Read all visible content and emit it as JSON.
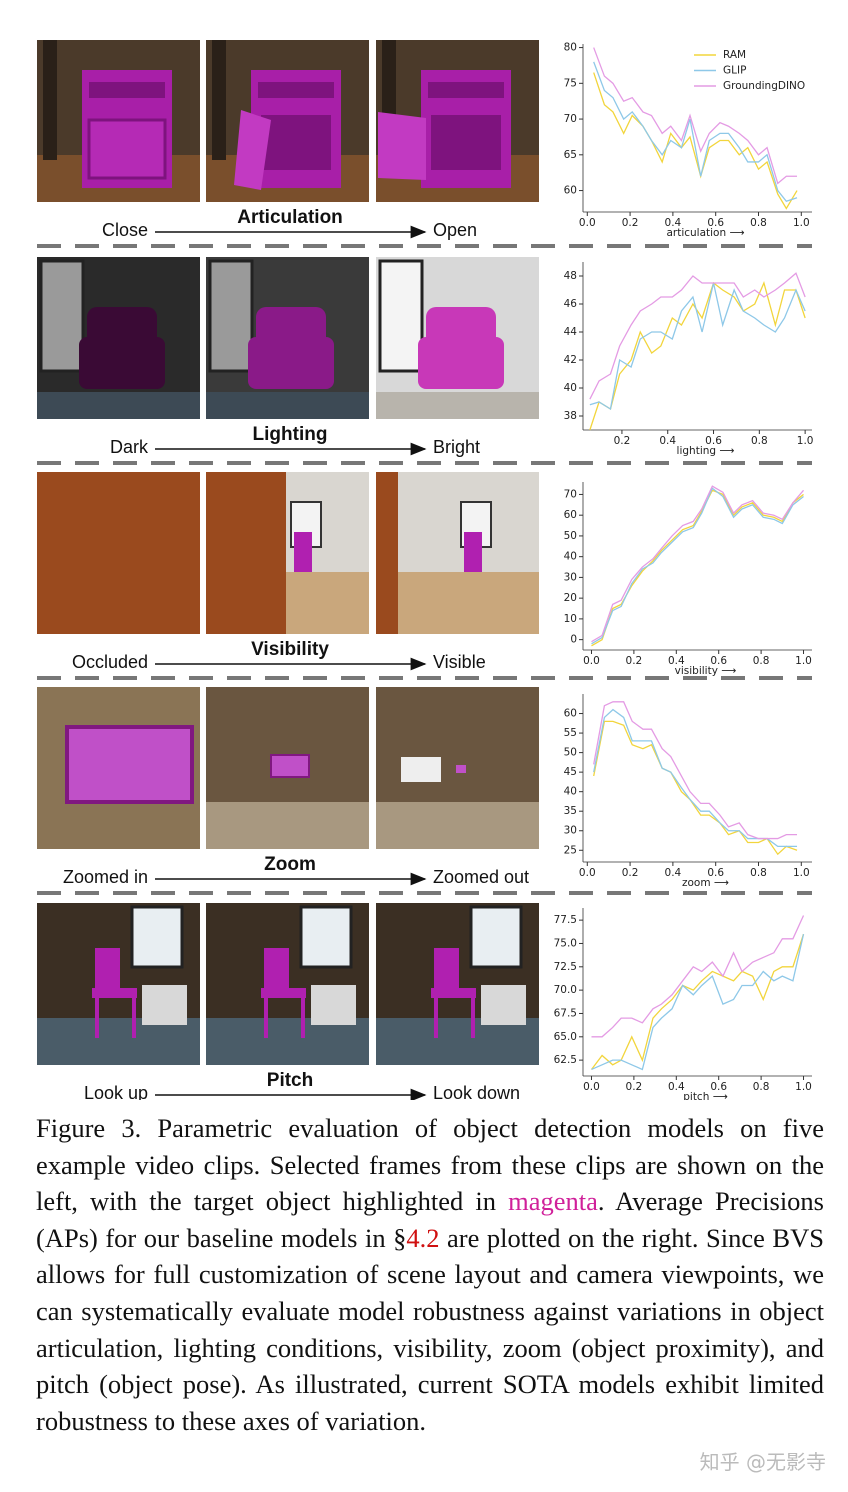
{
  "rows": [
    {
      "title": "Articulation",
      "left": "Close",
      "right": "Open"
    },
    {
      "title": "Lighting",
      "left": "Dark",
      "right": "Bright"
    },
    {
      "title": "Visibility",
      "left": "Occluded",
      "right": "Visible"
    },
    {
      "title": "Zoom",
      "left": "Zoomed in",
      "right": "Zoomed out"
    },
    {
      "title": "Pitch",
      "left": "Look up",
      "right": "Look down"
    }
  ],
  "chart_data": [
    {
      "type": "line",
      "xlabel": "articulation ⟶",
      "legend": "upper right",
      "x": [
        0.03,
        0.08,
        0.12,
        0.17,
        0.21,
        0.26,
        0.3,
        0.35,
        0.39,
        0.44,
        0.48,
        0.53,
        0.57,
        0.62,
        0.66,
        0.71,
        0.75,
        0.8,
        0.84,
        0.89,
        0.93,
        0.98
      ],
      "xlim": [
        -0.02,
        1.05
      ],
      "ylim": [
        57,
        80.5
      ],
      "xticks": [
        {
          "value": 0,
          "label": "0.0"
        },
        0.2,
        0.4,
        0.6,
        0.8,
        {
          "value": 1,
          "label": "1.0"
        }
      ],
      "yticks": [
        60,
        65,
        70,
        75,
        80
      ],
      "series": [
        {
          "name": "RAM",
          "color": "#f2d53c",
          "values": [
            76.5,
            72,
            71,
            68,
            70.5,
            69,
            67,
            64,
            68,
            66,
            67.5,
            62,
            66,
            67,
            67,
            65,
            66,
            63,
            64,
            59.5,
            57.5,
            60
          ]
        },
        {
          "name": "GLIP",
          "color": "#8ec8e8",
          "values": [
            78,
            74,
            73,
            70,
            71,
            69,
            67,
            65,
            67,
            66,
            70,
            62,
            67,
            68,
            68,
            66,
            64,
            64,
            65,
            60,
            58.5,
            59
          ]
        },
        {
          "name": "GroundingDINO",
          "color": "#e49be4",
          "values": [
            80,
            76,
            75,
            72.5,
            73,
            71,
            70.5,
            68,
            69,
            67,
            70.5,
            65.5,
            68,
            69.5,
            69,
            68,
            67,
            65,
            66,
            61,
            62,
            62
          ]
        }
      ]
    },
    {
      "type": "line",
      "xlabel": "lighting ⟶",
      "x": [
        0.06,
        0.1,
        0.15,
        0.19,
        0.24,
        0.28,
        0.33,
        0.37,
        0.42,
        0.46,
        0.51,
        0.55,
        0.6,
        0.64,
        0.69,
        0.73,
        0.78,
        0.82,
        0.87,
        0.91,
        0.96,
        1.0
      ],
      "xlim": [
        0.03,
        1.03
      ],
      "ylim": [
        37,
        49
      ],
      "xticks": [
        0.2,
        0.4,
        0.6,
        0.8,
        {
          "value": 1,
          "label": "1.0"
        }
      ],
      "yticks": [
        38,
        40,
        42,
        44,
        46,
        48
      ],
      "series": [
        {
          "color": "#f2d53c",
          "values": [
            37,
            39,
            38.5,
            41,
            42,
            44,
            42.5,
            43,
            45,
            44.5,
            46,
            45,
            47.5,
            47,
            46.5,
            45.5,
            46,
            47.5,
            44.5,
            47,
            47,
            45
          ]
        },
        {
          "color": "#8ec8e8",
          "values": [
            38.8,
            39,
            38.5,
            42,
            41.5,
            43.5,
            44,
            44,
            43.5,
            45.5,
            46.5,
            44,
            47.5,
            44.5,
            47,
            45.5,
            45,
            44.5,
            44,
            45,
            47,
            45.5
          ]
        },
        {
          "color": "#e49be4",
          "values": [
            39.2,
            40.5,
            41,
            43,
            44.5,
            45.5,
            46,
            46.5,
            46.5,
            47,
            48,
            47.5,
            47.5,
            47.5,
            47.5,
            46.5,
            47,
            46.5,
            47,
            47.5,
            48.2,
            46.5
          ]
        }
      ]
    },
    {
      "type": "line",
      "xlabel": "visibility ⟶",
      "x": [
        0,
        0.05,
        0.1,
        0.14,
        0.19,
        0.24,
        0.29,
        0.33,
        0.38,
        0.43,
        0.48,
        0.52,
        0.57,
        0.62,
        0.67,
        0.71,
        0.76,
        0.81,
        0.86,
        0.9,
        0.95,
        1.0
      ],
      "xlim": [
        -0.04,
        1.04
      ],
      "ylim": [
        -5,
        76
      ],
      "xticks": [
        {
          "value": 0,
          "label": "0.0"
        },
        0.2,
        0.4,
        0.6,
        0.8,
        {
          "value": 1,
          "label": "1.0"
        }
      ],
      "yticks": [
        0,
        10,
        20,
        30,
        40,
        50,
        60,
        70
      ],
      "series": [
        {
          "color": "#f2d53c",
          "values": [
            -3,
            0,
            15,
            17,
            26,
            33,
            38,
            43,
            48,
            53,
            55,
            62,
            72,
            70,
            60,
            64,
            66,
            60,
            59,
            57,
            66,
            70
          ]
        },
        {
          "color": "#8ec8e8",
          "values": [
            -2,
            1,
            14,
            16,
            27,
            34,
            37,
            42,
            47,
            52,
            54,
            61,
            73,
            69,
            59,
            63,
            65,
            59,
            58,
            56,
            65,
            69
          ]
        },
        {
          "color": "#e49be4",
          "values": [
            -1,
            2,
            17,
            19,
            29,
            35,
            39,
            44,
            50,
            55,
            57,
            63,
            74,
            71,
            61,
            65,
            67,
            61,
            60,
            58,
            66,
            72
          ]
        }
      ]
    },
    {
      "type": "line",
      "xlabel": "zoom ⟶",
      "x": [
        0.03,
        0.08,
        0.12,
        0.17,
        0.21,
        0.26,
        0.3,
        0.35,
        0.39,
        0.44,
        0.48,
        0.53,
        0.57,
        0.62,
        0.66,
        0.71,
        0.75,
        0.8,
        0.84,
        0.89,
        0.93,
        0.98
      ],
      "xlim": [
        -0.02,
        1.05
      ],
      "ylim": [
        22,
        65
      ],
      "xticks": [
        {
          "value": 0,
          "label": "0.0"
        },
        0.2,
        0.4,
        0.6,
        0.8,
        {
          "value": 1,
          "label": "1.0"
        }
      ],
      "yticks": [
        25,
        30,
        35,
        40,
        45,
        50,
        55,
        60
      ],
      "series": [
        {
          "color": "#f2d53c",
          "values": [
            44,
            58,
            58,
            57,
            52,
            51,
            52,
            46,
            45,
            40,
            38,
            34,
            34,
            32,
            29,
            30,
            27,
            27,
            28,
            24,
            26,
            25
          ]
        },
        {
          "color": "#8ec8e8",
          "values": [
            45,
            59,
            61,
            59,
            53,
            53,
            53,
            46,
            45,
            41,
            38,
            35,
            35,
            32,
            30,
            30,
            28,
            28,
            28,
            26,
            26,
            26
          ]
        },
        {
          "color": "#e49be4",
          "values": [
            47,
            62,
            63,
            63,
            58,
            56,
            56,
            51,
            49,
            44,
            40,
            37,
            37,
            34,
            31,
            32,
            29,
            28,
            28,
            28,
            29,
            29
          ]
        }
      ]
    },
    {
      "type": "line",
      "xlabel": "pitch ⟶",
      "x": [
        0,
        0.05,
        0.1,
        0.14,
        0.19,
        0.24,
        0.29,
        0.33,
        0.38,
        0.43,
        0.48,
        0.52,
        0.57,
        0.62,
        0.67,
        0.71,
        0.76,
        0.81,
        0.86,
        0.9,
        0.95,
        1.0
      ],
      "xlim": [
        -0.04,
        1.04
      ],
      "ylim": [
        60.8,
        78.8
      ],
      "xticks": [
        {
          "value": 0,
          "label": "0.0"
        },
        0.2,
        0.4,
        0.6,
        0.8,
        {
          "value": 1,
          "label": "1.0"
        }
      ],
      "yticks": [
        62.5,
        {
          "value": 65,
          "label": "65.0"
        },
        67.5,
        {
          "value": 70,
          "label": "70.0"
        },
        72.5,
        {
          "value": 75,
          "label": "75.0"
        },
        77.5
      ],
      "series": [
        {
          "color": "#f2d53c",
          "values": [
            61.5,
            63,
            62,
            62.5,
            65,
            62.5,
            67,
            68,
            69,
            70.5,
            70,
            71,
            72,
            71.5,
            71,
            72,
            71.5,
            69,
            72,
            72.5,
            72.5,
            76
          ]
        },
        {
          "color": "#8ec8e8",
          "values": [
            61.5,
            62,
            62.5,
            62.5,
            62,
            61.5,
            66,
            67,
            68,
            70.5,
            69.5,
            70.5,
            71.5,
            68.5,
            69,
            70.5,
            70.5,
            72,
            71,
            71.5,
            71,
            76
          ]
        },
        {
          "color": "#e49be4",
          "values": [
            65,
            65,
            66,
            67,
            67,
            66.5,
            68,
            68.5,
            69.5,
            71,
            72.5,
            72,
            73,
            71.5,
            74,
            72,
            73,
            73.5,
            74,
            75.5,
            75.5,
            78
          ]
        }
      ]
    }
  ],
  "caption": {
    "text1": "Figure 3. Parametric evaluation of object detection models on five example video clips. Selected frames from these clips are shown on the left, with the target object highlighted in ",
    "highlight": "magenta",
    "text2": ". Average Precisions (APs) for our baseline models in §",
    "ref": "4.2",
    "text3": " are plotted on the right. Since BVS allows for full customization of scene layout and camera viewpoints, we can systematically evaluate model robustness against variations in object articulation, lighting conditions, visibility, zoom (object proximity), and pitch (object pose). As illustrated, current SOTA models exhibit limited robustness to these axes of variation."
  },
  "watermark": "知乎 @无影寺"
}
